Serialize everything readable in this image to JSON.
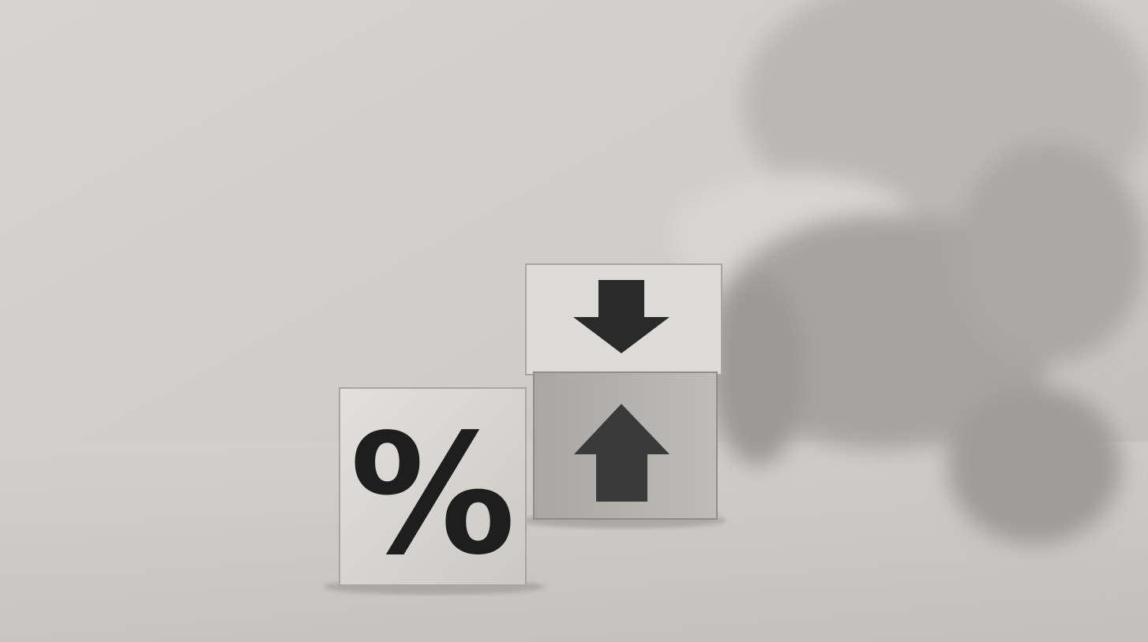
{
  "cube_symbol": "%"
}
